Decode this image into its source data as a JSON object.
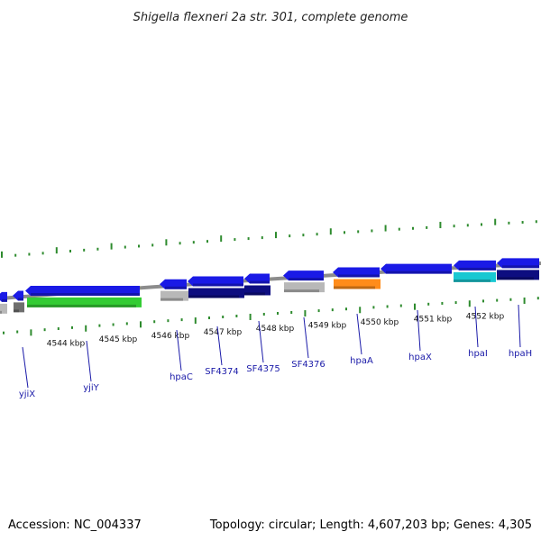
{
  "title": "Shigella flexneri 2a str. 301, complete genome",
  "footer": {
    "accession": "Accession: NC_004337",
    "summary": "Topology: circular; Length: 4,607,203 bp; Genes: 4,305"
  },
  "colors": {
    "backbone": "#8c8c8c",
    "tick": "#2e8b2e",
    "blue": "#1a1ae6",
    "navy": "#0d0d80",
    "green": "#33cc33",
    "grey": "#b8b8b8",
    "orange": "#ff8c1a",
    "cyan": "#19c8d2",
    "label": "#1a1aa8"
  },
  "kbp_labels": [
    "4544 kbp",
    "4545 kbp",
    "4546 kbp",
    "4547 kbp",
    "4548 kbp",
    "4549 kbp",
    "4550 kbp",
    "4551 kbp",
    "4552 kbp"
  ],
  "genes": [
    {
      "name": "yjiX"
    },
    {
      "name": "yjiY"
    },
    {
      "name": "hpaC"
    },
    {
      "name": "SF4374"
    },
    {
      "name": "SF4375"
    },
    {
      "name": "SF4376"
    },
    {
      "name": "hpaA"
    },
    {
      "name": "hpaX"
    },
    {
      "name": "hpaI"
    },
    {
      "name": "hpaH"
    }
  ]
}
